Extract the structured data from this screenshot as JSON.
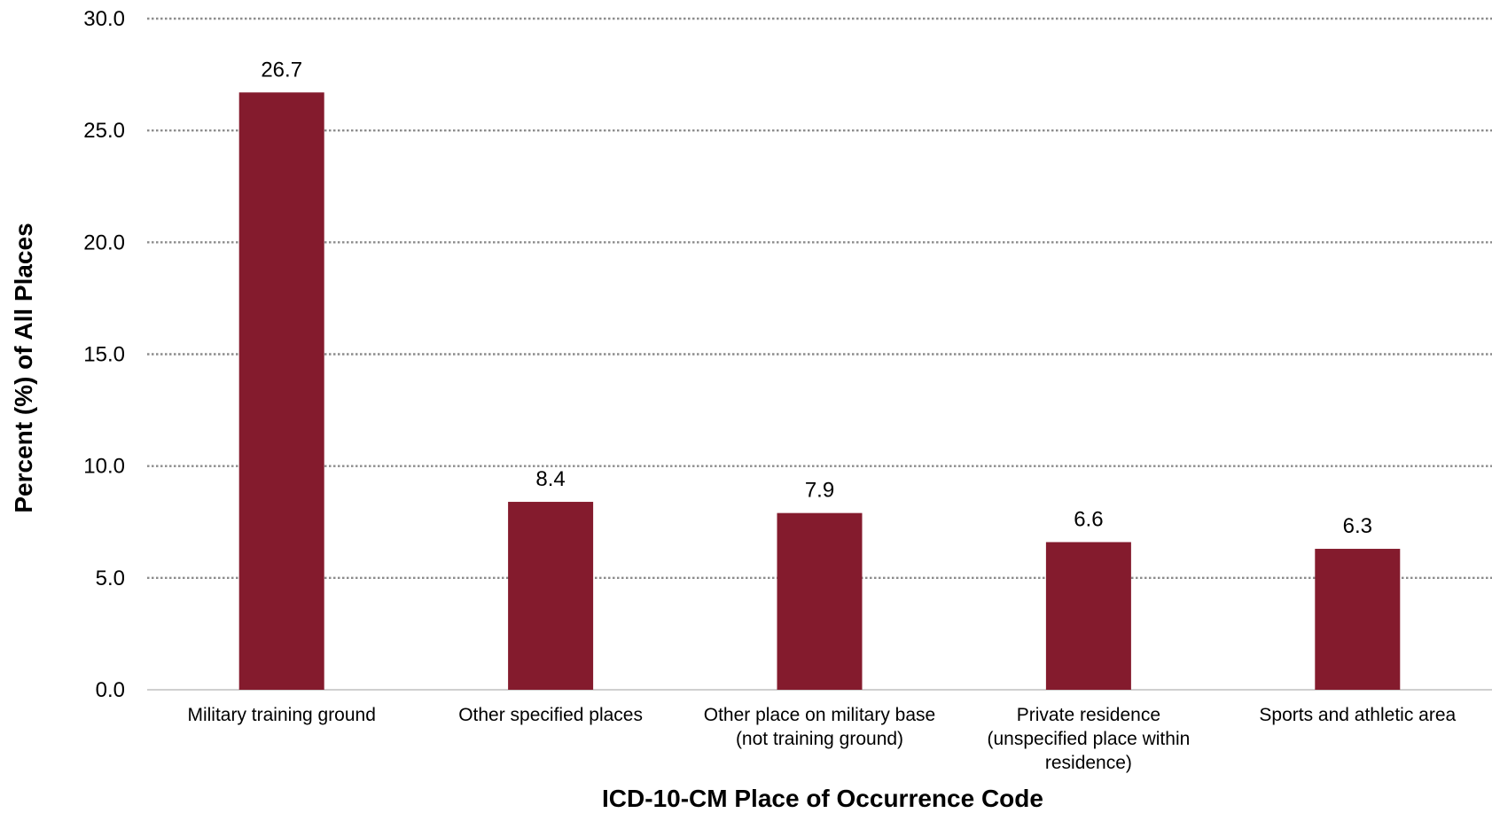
{
  "chart_data": {
    "type": "bar",
    "title": "",
    "xlabel": "ICD-10-CM Place of Occurrence Code",
    "ylabel": "Percent (%) of All Places",
    "ylim": [
      0,
      30
    ],
    "yticks": [
      "0.0",
      "5.0",
      "10.0",
      "15.0",
      "20.0",
      "25.0",
      "30.0"
    ],
    "categories": [
      [
        "Military training ground"
      ],
      [
        "Other specified places"
      ],
      [
        "Other place on military base",
        "(not training ground)"
      ],
      [
        "Private residence",
        "(unspecified place within",
        "residence)"
      ],
      [
        "Sports and athletic area"
      ]
    ],
    "values": [
      26.7,
      8.4,
      7.9,
      6.6,
      6.3
    ],
    "value_labels": [
      "26.7",
      "8.4",
      "7.9",
      "6.6",
      "6.3"
    ],
    "bar_color": "#841b2d",
    "grid": "horizontal dotted",
    "legend": "none"
  }
}
